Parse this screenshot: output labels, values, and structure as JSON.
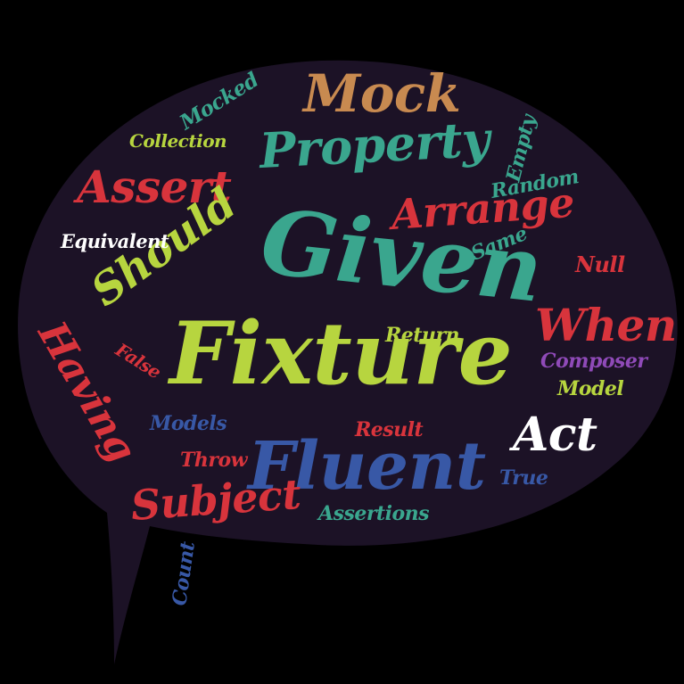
{
  "background_color": "#000000",
  "bubble_color": "#1c1226",
  "words": [
    {
      "text": "Fixture",
      "color": "#b7d53f"
    },
    {
      "text": "Given",
      "color": "#3aa68e"
    },
    {
      "text": "Fluent",
      "color": "#3858a6"
    },
    {
      "text": "Property",
      "color": "#3aa68e"
    },
    {
      "text": "Mock",
      "color": "#c88a50"
    },
    {
      "text": "Arrange",
      "color": "#d8343c"
    },
    {
      "text": "Assert",
      "color": "#d8343c"
    },
    {
      "text": "Should",
      "color": "#b7d53f"
    },
    {
      "text": "When",
      "color": "#d8343c"
    },
    {
      "text": "Having",
      "color": "#d8343c"
    },
    {
      "text": "Act",
      "color": "#ffffff"
    },
    {
      "text": "Subject",
      "color": "#d8343c"
    },
    {
      "text": "Equivalent",
      "color": "#ffffff"
    },
    {
      "text": "Collection",
      "color": "#b7d53f"
    },
    {
      "text": "Mocked",
      "color": "#3aa68e"
    },
    {
      "text": "Empty",
      "color": "#3aa68e"
    },
    {
      "text": "Random",
      "color": "#3aa68e"
    },
    {
      "text": "Same",
      "color": "#3aa68e"
    },
    {
      "text": "Null",
      "color": "#d8343c"
    },
    {
      "text": "Return",
      "color": "#b7d53f"
    },
    {
      "text": "Composer",
      "color": "#8f4ab8"
    },
    {
      "text": "Model",
      "color": "#b7d53f"
    },
    {
      "text": "False",
      "color": "#d8343c"
    },
    {
      "text": "Models",
      "color": "#3858a6"
    },
    {
      "text": "Result",
      "color": "#d8343c"
    },
    {
      "text": "Throw",
      "color": "#d8343c"
    },
    {
      "text": "True",
      "color": "#3858a6"
    },
    {
      "text": "Assertions",
      "color": "#3aa68e"
    },
    {
      "text": "Count",
      "color": "#3858a6"
    }
  ]
}
